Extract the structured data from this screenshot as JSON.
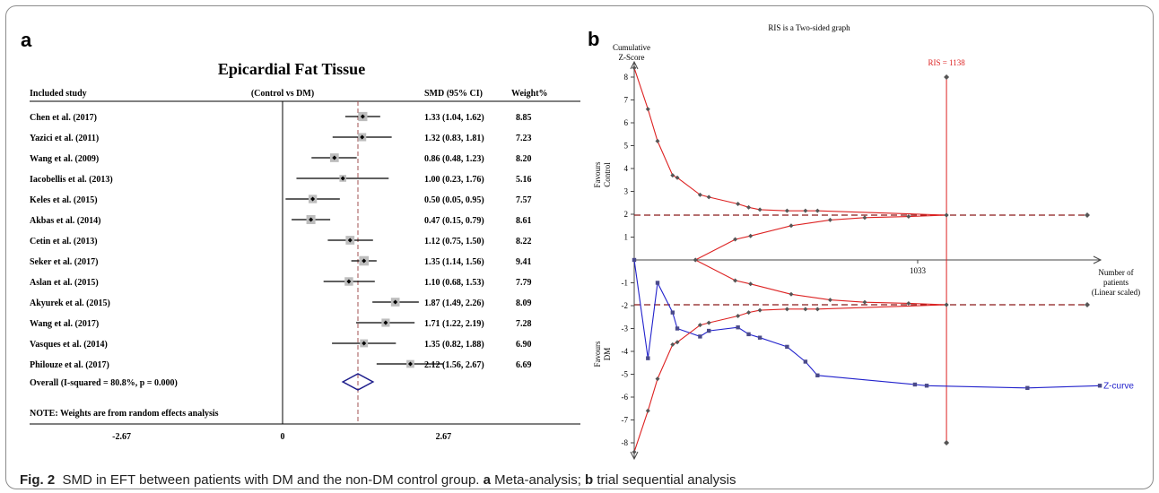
{
  "panels": {
    "a": "a",
    "b": "b"
  },
  "caption": {
    "figno": "Fig. 2",
    "text1": "SMD in EFT between patients with DM and the non-DM control group.",
    "la": "a",
    "ta": "Meta-analysis;",
    "lb": "b",
    "tb": "trial sequential analysis"
  },
  "chart_data": [
    {
      "type": "forest",
      "title": "Epicardial Fat Tissue",
      "headers": {
        "study": "Included study",
        "comparison": "(Control vs DM)",
        "smd": "SMD (95% CI)",
        "weight": "Weight%"
      },
      "xticks": [
        "-2.67",
        "0",
        "2.67"
      ],
      "xlim": [
        -2.67,
        5.9
      ],
      "null_line": 0,
      "studies": [
        {
          "name": "Chen et al. (2017)",
          "smd": 1.33,
          "lo": 1.04,
          "hi": 1.62,
          "ci": "1.33 (1.04, 1.62)",
          "weight": "8.85"
        },
        {
          "name": "Yazici et al. (2011)",
          "smd": 1.32,
          "lo": 0.83,
          "hi": 1.81,
          "ci": "1.32 (0.83, 1.81)",
          "weight": "7.23"
        },
        {
          "name": "Wang et al. (2009)",
          "smd": 0.86,
          "lo": 0.48,
          "hi": 1.23,
          "ci": "0.86 (0.48, 1.23)",
          "weight": "8.20"
        },
        {
          "name": "Iacobellis et al. (2013)",
          "smd": 1.0,
          "lo": 0.23,
          "hi": 1.76,
          "ci": "1.00 (0.23, 1.76)",
          "weight": "5.16"
        },
        {
          "name": "Keles et al. (2015)",
          "smd": 0.5,
          "lo": 0.05,
          "hi": 0.95,
          "ci": "0.50 (0.05, 0.95)",
          "weight": "7.57"
        },
        {
          "name": "Akbas et al. (2014)",
          "smd": 0.47,
          "lo": 0.15,
          "hi": 0.79,
          "ci": "0.47 (0.15, 0.79)",
          "weight": "8.61"
        },
        {
          "name": "Cetin et al. (2013)",
          "smd": 1.12,
          "lo": 0.75,
          "hi": 1.5,
          "ci": "1.12 (0.75, 1.50)",
          "weight": "8.22"
        },
        {
          "name": "Seker et al. (2017)",
          "smd": 1.35,
          "lo": 1.14,
          "hi": 1.56,
          "ci": "1.35 (1.14, 1.56)",
          "weight": "9.41"
        },
        {
          "name": "Aslan et al. (2015)",
          "smd": 1.1,
          "lo": 0.68,
          "hi": 1.53,
          "ci": "1.10 (0.68, 1.53)",
          "weight": "7.79"
        },
        {
          "name": "Akyurek et al. (2015)",
          "smd": 1.87,
          "lo": 1.49,
          "hi": 2.26,
          "ci": "1.87 (1.49, 2.26)",
          "weight": "8.09"
        },
        {
          "name": "Wang et al. (2017)",
          "smd": 1.71,
          "lo": 1.22,
          "hi": 2.19,
          "ci": "1.71 (1.22, 2.19)",
          "weight": "7.28"
        },
        {
          "name": "Vasques et al. (2014)",
          "smd": 1.35,
          "lo": 0.82,
          "hi": 1.88,
          "ci": "1.35 (0.82, 1.88)",
          "weight": "6.90"
        },
        {
          "name": "Philouze et al. (2017)",
          "smd": 2.12,
          "lo": 1.56,
          "hi": 2.67,
          "ci": "2.12 (1.56, 2.67)",
          "weight": "6.69"
        }
      ],
      "overall": {
        "label": "Overall  (I-squared = 80.8%, p = 0.000)",
        "smd": 1.25,
        "lo": 1.0,
        "hi": 1.5
      },
      "note": "NOTE: Weights are from random effects analysis",
      "colors": {
        "marker_box": "#bdbdbd",
        "ci_line": "#000000",
        "overall_line": "#a05050",
        "diamond": "#1e1e8c"
      }
    },
    {
      "type": "line",
      "title": "RIS is a Two-sided graph",
      "ylabel_top": [
        "Cumulative",
        "Z-Score"
      ],
      "favours_control": [
        "Favours",
        "Control"
      ],
      "favours_dm": [
        "Favours",
        "DM"
      ],
      "xlabel": [
        "Number of",
        "patients",
        "(Linear scaled)"
      ],
      "ris_label": "RIS = 1138",
      "ris_value": 1138,
      "x_tick": "1033",
      "x_tick_value": 1033,
      "xlim": [
        0,
        1700
      ],
      "ylim": [
        -8.5,
        8.5
      ],
      "yticks": [
        8,
        7,
        6,
        5,
        4,
        3,
        2,
        1,
        -1,
        -2,
        -3,
        -4,
        -5,
        -6,
        -7,
        -8
      ],
      "conventional_boundaries": [
        1.96,
        -1.96
      ],
      "series": [
        {
          "name": "Z-curve",
          "color": "#2222cc",
          "marker": "square",
          "x": [
            0,
            50,
            85,
            140,
            157,
            240,
            272,
            378,
            417,
            458,
            557,
            624,
            668,
            1023,
            1066,
            1433,
            1697
          ],
          "y": [
            0,
            -4.3,
            -1.0,
            -2.3,
            -3.0,
            -3.35,
            -3.1,
            -2.95,
            -3.25,
            -3.4,
            -3.8,
            -4.45,
            -5.05,
            -5.45,
            -5.5,
            -5.6,
            -5.5
          ]
        },
        {
          "color": "#dd2222",
          "marker": "diamond",
          "x": [
            0,
            50,
            85,
            140,
            157,
            240,
            272,
            378,
            417,
            458,
            557,
            624,
            668,
            1138
          ],
          "y": [
            8.4,
            6.6,
            5.2,
            3.7,
            3.6,
            2.85,
            2.75,
            2.45,
            2.3,
            2.2,
            2.15,
            2.15,
            2.15,
            1.96
          ]
        },
        {
          "color": "#dd2222",
          "marker": "diamond",
          "x": [
            0,
            50,
            85,
            140,
            157,
            240,
            272,
            378,
            417,
            458,
            557,
            624,
            668,
            1138
          ],
          "y": [
            -8.4,
            -6.6,
            -5.2,
            -3.7,
            -3.6,
            -2.85,
            -2.75,
            -2.45,
            -2.3,
            -2.2,
            -2.15,
            -2.15,
            -2.15,
            -1.96
          ]
        },
        {
          "color": "#dd2222",
          "marker": "diamond",
          "x": [
            223,
            368,
            424,
            572,
            714,
            840,
            1000,
            1138
          ],
          "y": [
            0,
            0.9,
            1.05,
            1.5,
            1.75,
            1.85,
            1.9,
            1.96
          ]
        },
        {
          "color": "#dd2222",
          "marker": "diamond",
          "x": [
            223,
            368,
            424,
            572,
            714,
            840,
            1000,
            1138
          ],
          "y": [
            0,
            -0.9,
            -1.05,
            -1.5,
            -1.75,
            -1.85,
            -1.9,
            -1.96
          ]
        }
      ],
      "colors": {
        "ris": "#dd2222",
        "boundary_dashed": "#8b1a1a",
        "axis": "#444444"
      }
    }
  ]
}
